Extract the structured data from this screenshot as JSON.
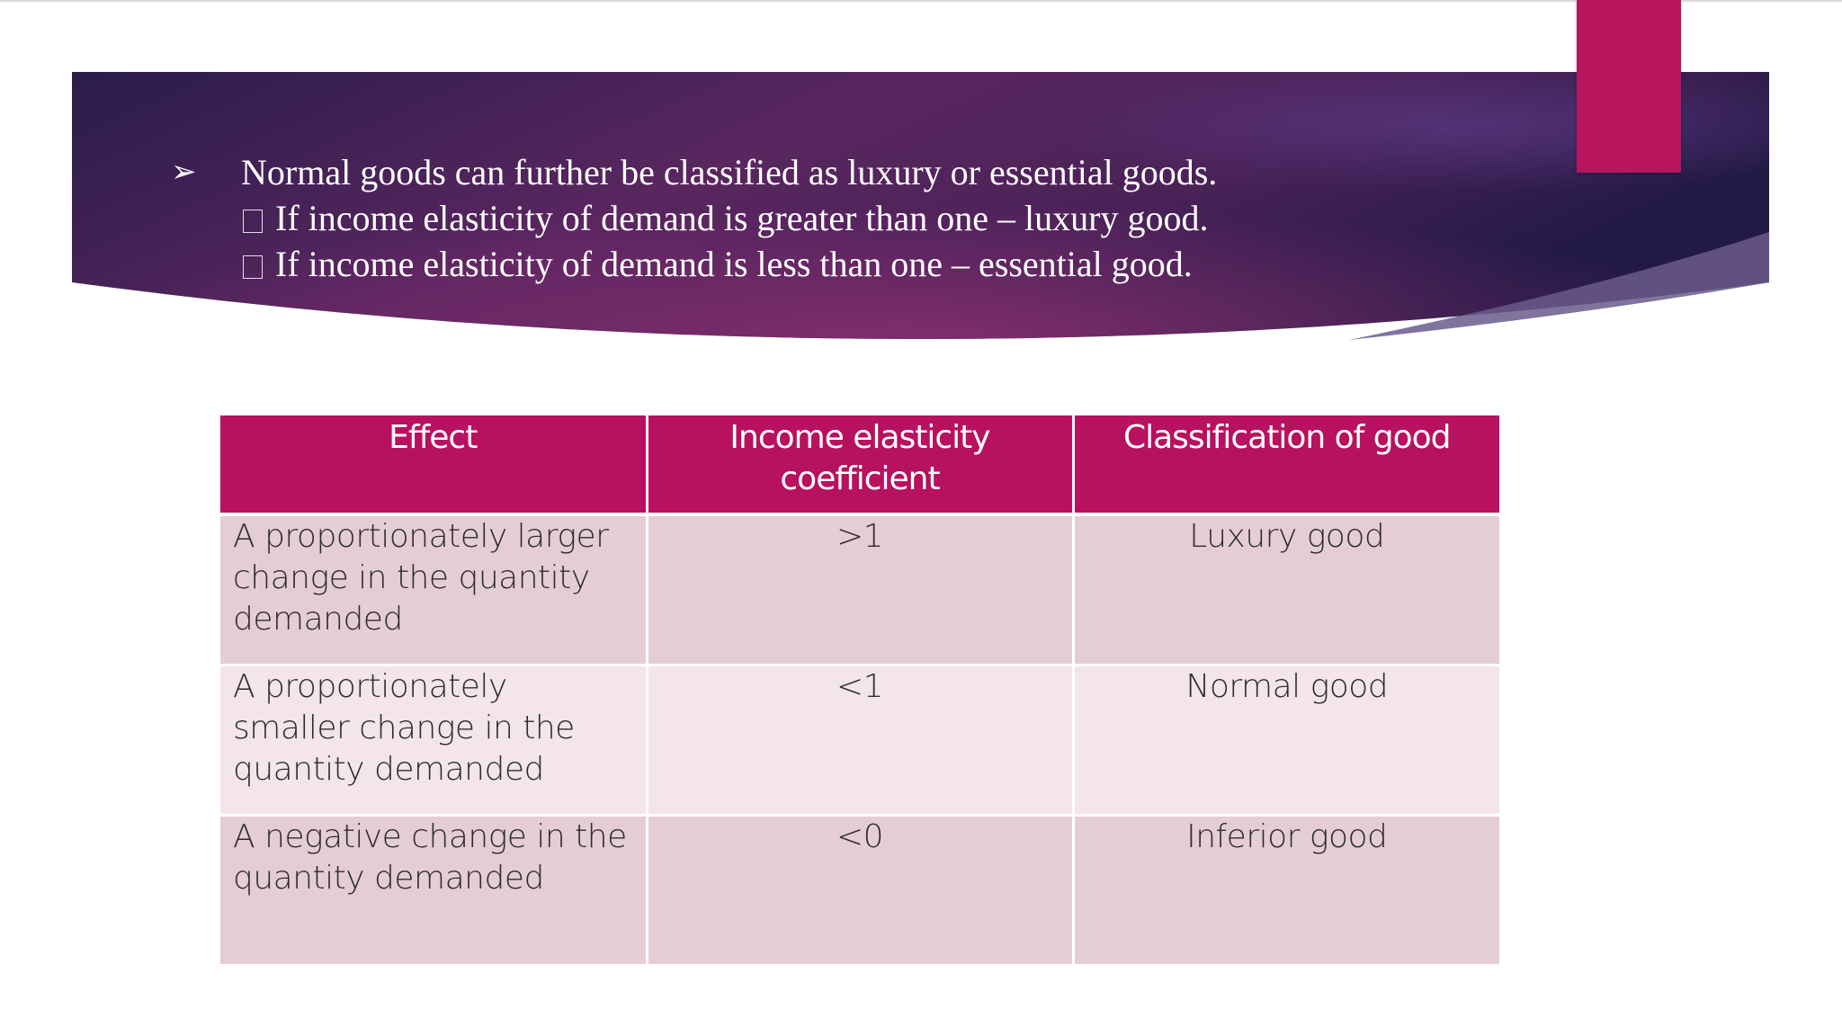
{
  "colors": {
    "banner_dark": "#2b1d4e",
    "banner_magenta": "#6b2863",
    "accent": "#b8155f",
    "header_fill": "#b8115f",
    "row_odd": "#e5cdd5",
    "row_even": "#f3e5ea"
  },
  "banner": {
    "bullet_icon": "arrow-bullet-icon",
    "main": "Normal goods can further be classified as luxury or essential goods.",
    "subs": [
      {
        "icon": "box-icon",
        "text": "If income elasticity of demand is greater than one – luxury good."
      },
      {
        "icon": "box-icon",
        "text": "If income elasticity of demand is less than one – essential good."
      }
    ]
  },
  "table": {
    "headers": [
      "Effect",
      "Income elasticity coefficient",
      "Classification of good"
    ],
    "rows": [
      {
        "effect": "A proportionately larger change in the quantity demanded",
        "coefficient": ">1",
        "classification": "Luxury good"
      },
      {
        "effect": "A proportionately smaller change in the quantity demanded",
        "coefficient": "<1",
        "classification": "Normal good"
      },
      {
        "effect": "A negative change in the quantity demanded",
        "coefficient": "<0",
        "classification": "Inferior good"
      }
    ]
  }
}
